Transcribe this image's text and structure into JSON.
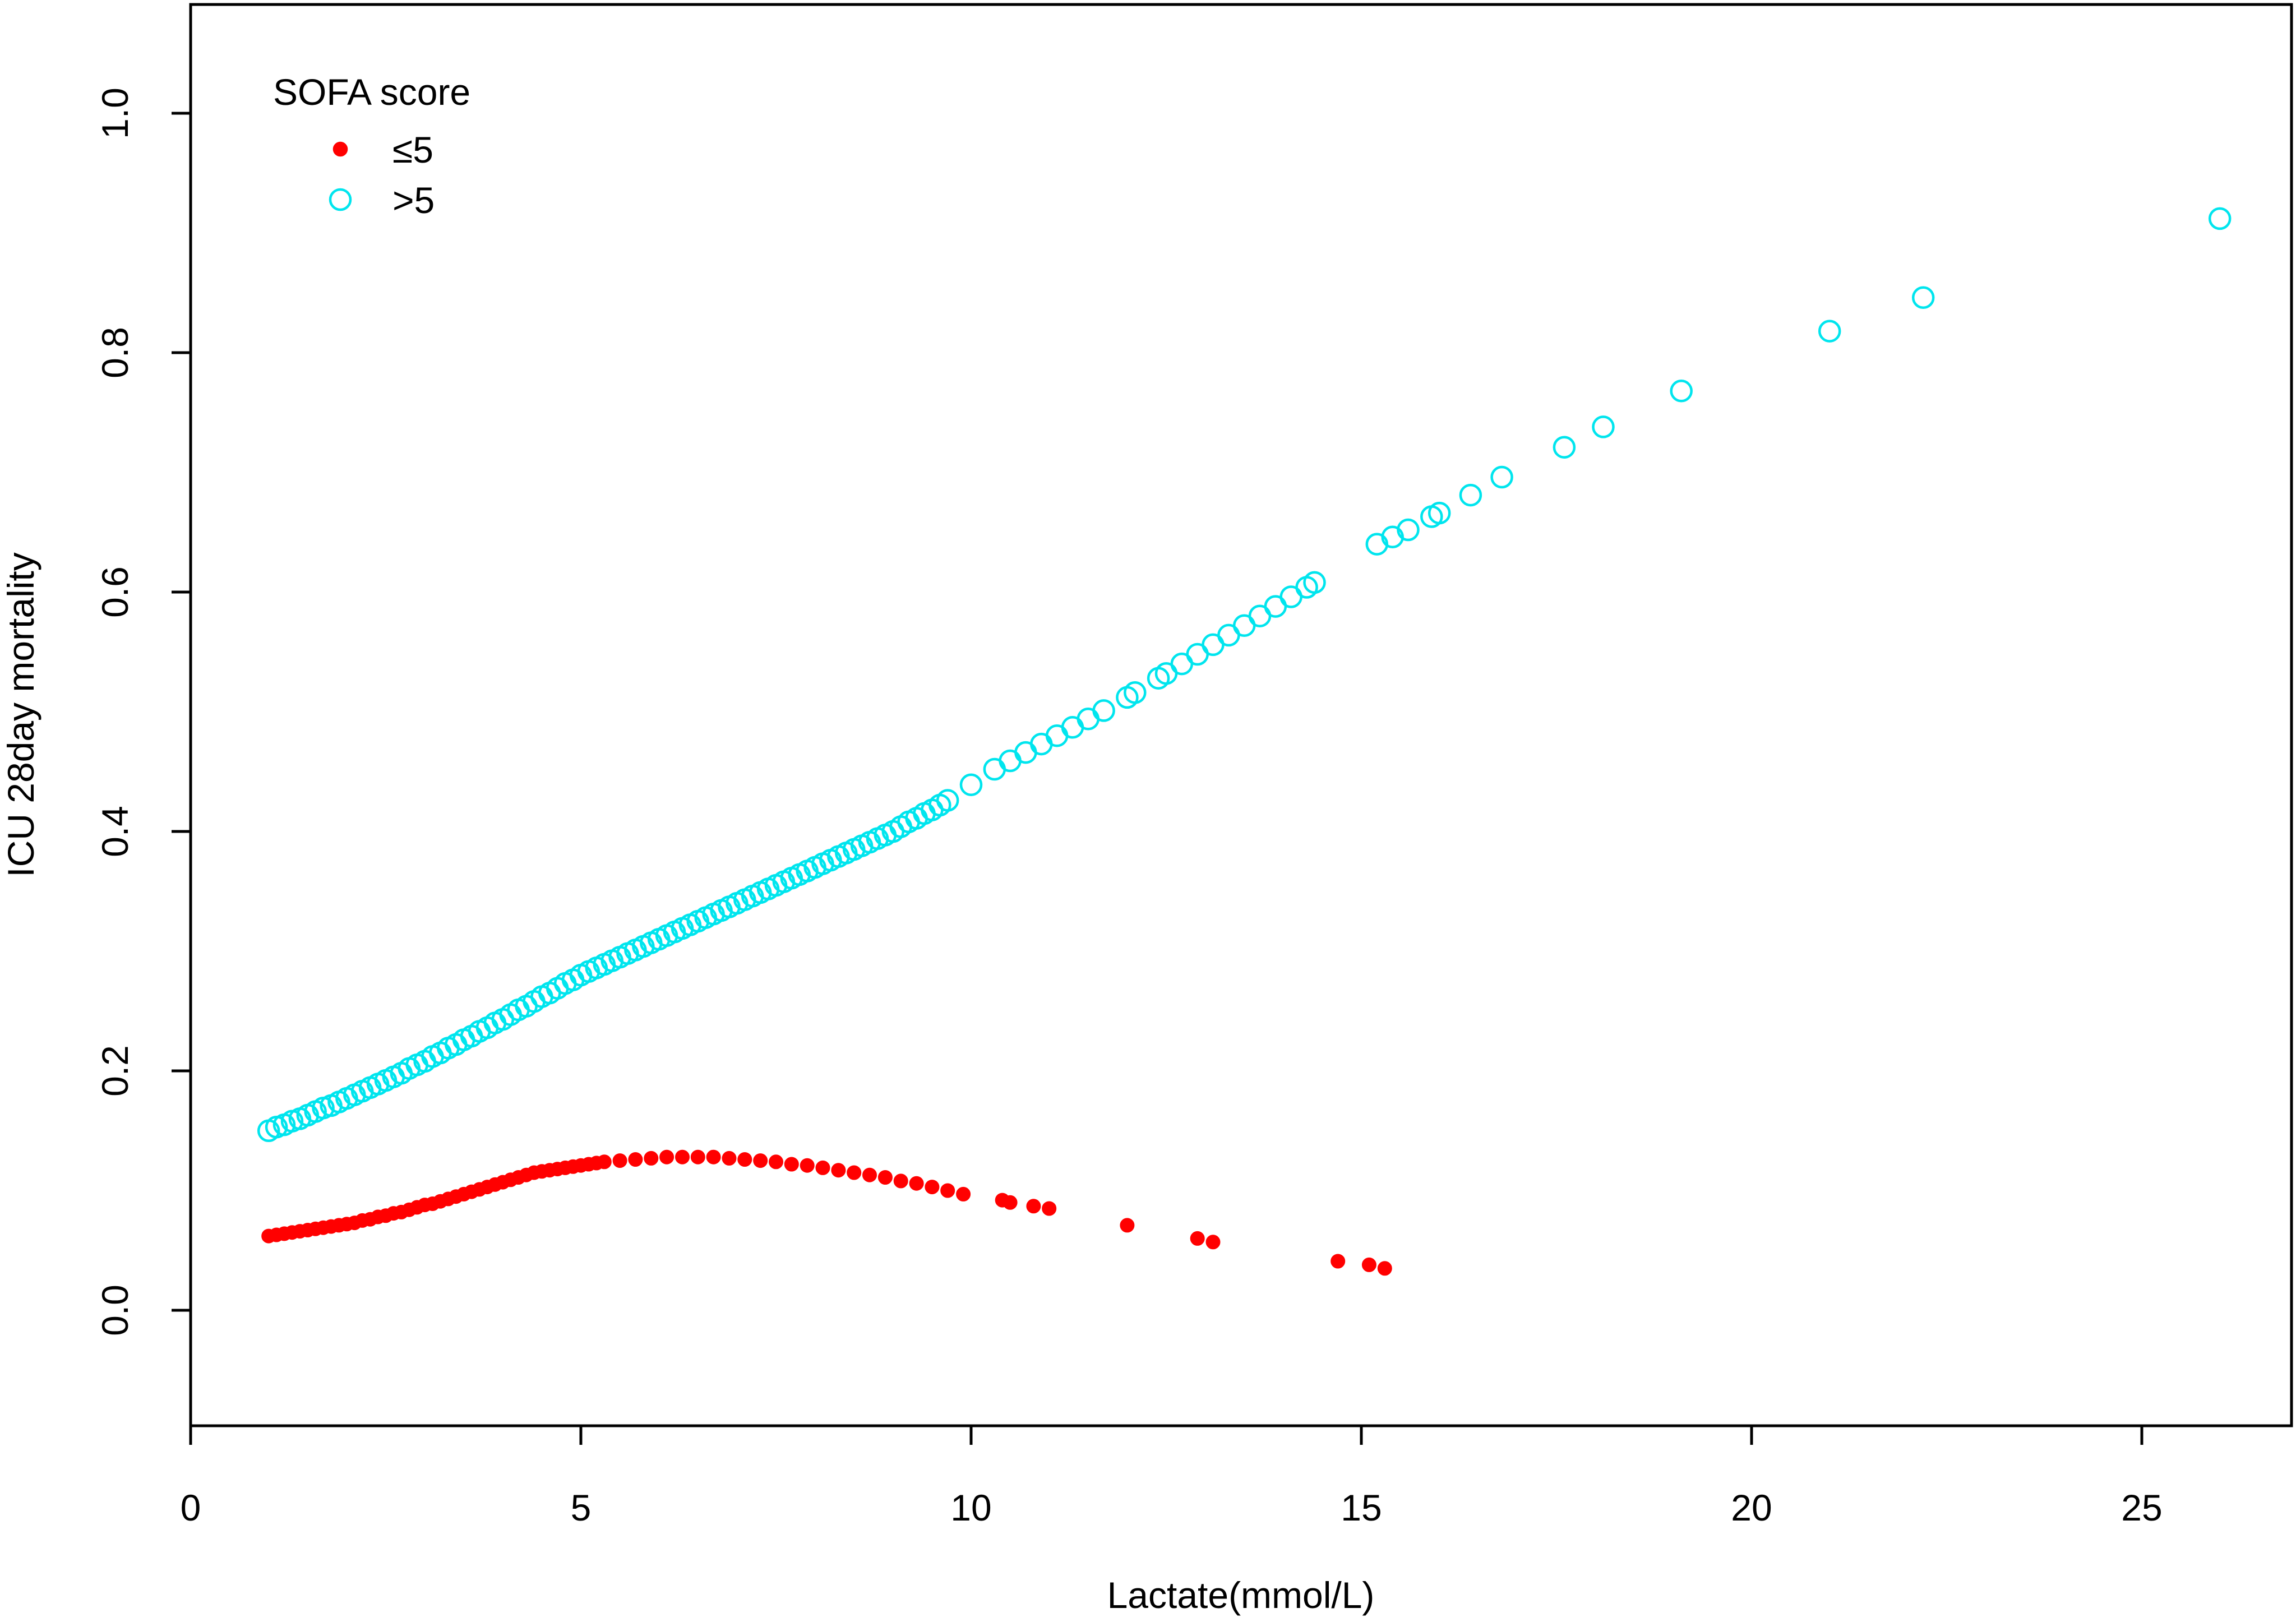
{
  "chart_data": {
    "type": "scatter",
    "title": "",
    "xlabel": "Lactate(mmol/L)",
    "ylabel": "ICU 28day mortality",
    "xlim": [
      0,
      27
    ],
    "ylim": [
      -0.1,
      1.09
    ],
    "xticks": [
      "0",
      "5",
      "10",
      "15",
      "20",
      "25"
    ],
    "yticks": [
      "0.0",
      "0.2",
      "0.4",
      "0.6",
      "0.8",
      "1.0"
    ],
    "grid": false,
    "legend": {
      "title": "SOFA score",
      "position": "top-left"
    },
    "series": [
      {
        "name": "≤5",
        "marker": "filled-circle",
        "color": "#ff0000",
        "points": [
          [
            1.0,
            0.062
          ],
          [
            1.1,
            0.063
          ],
          [
            1.2,
            0.064
          ],
          [
            1.3,
            0.065
          ],
          [
            1.4,
            0.066
          ],
          [
            1.5,
            0.067
          ],
          [
            1.6,
            0.068
          ],
          [
            1.7,
            0.069
          ],
          [
            1.8,
            0.07
          ],
          [
            1.9,
            0.071
          ],
          [
            2.0,
            0.072
          ],
          [
            2.1,
            0.073
          ],
          [
            2.2,
            0.075
          ],
          [
            2.3,
            0.076
          ],
          [
            2.4,
            0.078
          ],
          [
            2.5,
            0.079
          ],
          [
            2.6,
            0.081
          ],
          [
            2.7,
            0.082
          ],
          [
            2.8,
            0.084
          ],
          [
            2.9,
            0.086
          ],
          [
            3.0,
            0.088
          ],
          [
            3.1,
            0.089
          ],
          [
            3.2,
            0.091
          ],
          [
            3.3,
            0.093
          ],
          [
            3.4,
            0.095
          ],
          [
            3.5,
            0.097
          ],
          [
            3.6,
            0.099
          ],
          [
            3.7,
            0.101
          ],
          [
            3.8,
            0.103
          ],
          [
            3.9,
            0.105
          ],
          [
            4.0,
            0.107
          ],
          [
            4.1,
            0.109
          ],
          [
            4.2,
            0.111
          ],
          [
            4.3,
            0.113
          ],
          [
            4.4,
            0.115
          ],
          [
            4.5,
            0.116
          ],
          [
            4.6,
            0.117
          ],
          [
            4.7,
            0.118
          ],
          [
            4.8,
            0.119
          ],
          [
            4.9,
            0.12
          ],
          [
            5.0,
            0.121
          ],
          [
            5.1,
            0.122
          ],
          [
            5.2,
            0.123
          ],
          [
            5.3,
            0.124
          ],
          [
            5.5,
            0.125
          ],
          [
            5.7,
            0.126
          ],
          [
            5.9,
            0.127
          ],
          [
            6.1,
            0.128
          ],
          [
            6.3,
            0.128
          ],
          [
            6.5,
            0.128
          ],
          [
            6.7,
            0.128
          ],
          [
            6.9,
            0.127
          ],
          [
            7.1,
            0.126
          ],
          [
            7.3,
            0.125
          ],
          [
            7.5,
            0.124
          ],
          [
            7.7,
            0.122
          ],
          [
            7.9,
            0.121
          ],
          [
            8.1,
            0.119
          ],
          [
            8.3,
            0.117
          ],
          [
            8.5,
            0.115
          ],
          [
            8.7,
            0.113
          ],
          [
            8.9,
            0.111
          ],
          [
            9.1,
            0.108
          ],
          [
            9.3,
            0.106
          ],
          [
            9.5,
            0.103
          ],
          [
            9.7,
            0.1
          ],
          [
            9.9,
            0.097
          ],
          [
            10.4,
            0.092
          ],
          [
            10.5,
            0.09
          ],
          [
            10.8,
            0.087
          ],
          [
            11.0,
            0.085
          ],
          [
            12.0,
            0.071
          ],
          [
            12.9,
            0.06
          ],
          [
            13.1,
            0.057
          ],
          [
            14.7,
            0.041
          ],
          [
            15.1,
            0.038
          ],
          [
            15.3,
            0.035
          ]
        ]
      },
      {
        "name": ">5",
        "marker": "open-circle",
        "color": "#00e5ee",
        "points": [
          [
            1.0,
            0.15
          ],
          [
            1.1,
            0.153
          ],
          [
            1.2,
            0.155
          ],
          [
            1.3,
            0.158
          ],
          [
            1.4,
            0.16
          ],
          [
            1.5,
            0.163
          ],
          [
            1.6,
            0.166
          ],
          [
            1.7,
            0.169
          ],
          [
            1.8,
            0.171
          ],
          [
            1.9,
            0.174
          ],
          [
            2.0,
            0.177
          ],
          [
            2.1,
            0.18
          ],
          [
            2.2,
            0.183
          ],
          [
            2.3,
            0.186
          ],
          [
            2.4,
            0.189
          ],
          [
            2.5,
            0.192
          ],
          [
            2.6,
            0.195
          ],
          [
            2.7,
            0.198
          ],
          [
            2.8,
            0.202
          ],
          [
            2.9,
            0.205
          ],
          [
            3.0,
            0.208
          ],
          [
            3.1,
            0.212
          ],
          [
            3.2,
            0.215
          ],
          [
            3.3,
            0.219
          ],
          [
            3.4,
            0.222
          ],
          [
            3.5,
            0.226
          ],
          [
            3.6,
            0.229
          ],
          [
            3.7,
            0.233
          ],
          [
            3.8,
            0.236
          ],
          [
            3.9,
            0.24
          ],
          [
            4.0,
            0.243
          ],
          [
            4.1,
            0.247
          ],
          [
            4.2,
            0.251
          ],
          [
            4.3,
            0.254
          ],
          [
            4.4,
            0.258
          ],
          [
            4.5,
            0.262
          ],
          [
            4.6,
            0.265
          ],
          [
            4.7,
            0.269
          ],
          [
            4.8,
            0.273
          ],
          [
            4.9,
            0.276
          ],
          [
            5.0,
            0.28
          ],
          [
            5.1,
            0.283
          ],
          [
            5.2,
            0.286
          ],
          [
            5.3,
            0.289
          ],
          [
            5.4,
            0.292
          ],
          [
            5.5,
            0.295
          ],
          [
            5.6,
            0.298
          ],
          [
            5.7,
            0.301
          ],
          [
            5.8,
            0.304
          ],
          [
            5.9,
            0.307
          ],
          [
            6.0,
            0.31
          ],
          [
            6.1,
            0.313
          ],
          [
            6.2,
            0.316
          ],
          [
            6.3,
            0.319
          ],
          [
            6.4,
            0.322
          ],
          [
            6.5,
            0.325
          ],
          [
            6.6,
            0.328
          ],
          [
            6.7,
            0.331
          ],
          [
            6.8,
            0.334
          ],
          [
            6.9,
            0.337
          ],
          [
            7.0,
            0.34
          ],
          [
            7.1,
            0.343
          ],
          [
            7.2,
            0.346
          ],
          [
            7.3,
            0.349
          ],
          [
            7.4,
            0.352
          ],
          [
            7.5,
            0.355
          ],
          [
            7.6,
            0.358
          ],
          [
            7.7,
            0.361
          ],
          [
            7.8,
            0.364
          ],
          [
            7.9,
            0.367
          ],
          [
            8.0,
            0.37
          ],
          [
            8.1,
            0.373
          ],
          [
            8.2,
            0.376
          ],
          [
            8.3,
            0.379
          ],
          [
            8.4,
            0.382
          ],
          [
            8.5,
            0.385
          ],
          [
            8.6,
            0.388
          ],
          [
            8.7,
            0.391
          ],
          [
            8.8,
            0.394
          ],
          [
            8.9,
            0.397
          ],
          [
            9.0,
            0.4
          ],
          [
            9.1,
            0.404
          ],
          [
            9.2,
            0.408
          ],
          [
            9.3,
            0.411
          ],
          [
            9.4,
            0.415
          ],
          [
            9.5,
            0.418
          ],
          [
            9.6,
            0.422
          ],
          [
            9.7,
            0.426
          ],
          [
            10.0,
            0.439
          ],
          [
            10.3,
            0.452
          ],
          [
            10.5,
            0.459
          ],
          [
            10.7,
            0.466
          ],
          [
            10.9,
            0.473
          ],
          [
            11.1,
            0.48
          ],
          [
            11.3,
            0.487
          ],
          [
            11.5,
            0.494
          ],
          [
            11.7,
            0.501
          ],
          [
            12.0,
            0.512
          ],
          [
            12.1,
            0.516
          ],
          [
            12.4,
            0.528
          ],
          [
            12.5,
            0.532
          ],
          [
            12.7,
            0.54
          ],
          [
            12.9,
            0.548
          ],
          [
            13.1,
            0.556
          ],
          [
            13.3,
            0.564
          ],
          [
            13.5,
            0.572
          ],
          [
            13.7,
            0.58
          ],
          [
            13.9,
            0.588
          ],
          [
            14.1,
            0.596
          ],
          [
            14.3,
            0.604
          ],
          [
            14.4,
            0.608
          ],
          [
            15.2,
            0.64
          ],
          [
            15.4,
            0.646
          ],
          [
            15.6,
            0.652
          ],
          [
            15.9,
            0.663
          ],
          [
            16.0,
            0.666
          ],
          [
            16.4,
            0.681
          ],
          [
            16.8,
            0.696
          ],
          [
            17.6,
            0.721
          ],
          [
            18.1,
            0.738
          ],
          [
            19.1,
            0.768
          ],
          [
            21.0,
            0.818
          ],
          [
            22.2,
            0.846
          ],
          [
            26.0,
            0.912
          ]
        ]
      }
    ]
  }
}
